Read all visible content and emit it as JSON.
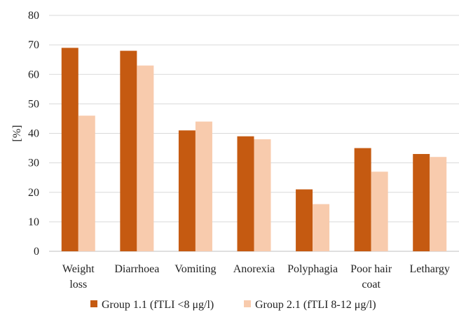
{
  "chart_data": {
    "type": "bar",
    "ylabel": "[%]",
    "ylim": [
      0,
      80
    ],
    "yticks": [
      0,
      10,
      20,
      30,
      40,
      50,
      60,
      70,
      80
    ],
    "grid": true,
    "legend_position": "bottom",
    "categories": [
      [
        "Weight",
        "loss"
      ],
      [
        "Diarrhoea"
      ],
      [
        "Vomiting"
      ],
      [
        "Anorexia"
      ],
      [
        "Polyphagia"
      ],
      [
        "Poor hair",
        "coat"
      ],
      [
        "Lethargy"
      ]
    ],
    "series": [
      {
        "name": "Group 1.1 (fTLI <8 μg/l)",
        "color": "#c55a11",
        "values": [
          69,
          68,
          41,
          39,
          21,
          35,
          33
        ]
      },
      {
        "name": "Group 2.1 (fTLI 8-12 μg/l)",
        "color": "#f8cbad",
        "values": [
          46,
          63,
          44,
          38,
          16,
          27,
          32
        ]
      }
    ]
  }
}
